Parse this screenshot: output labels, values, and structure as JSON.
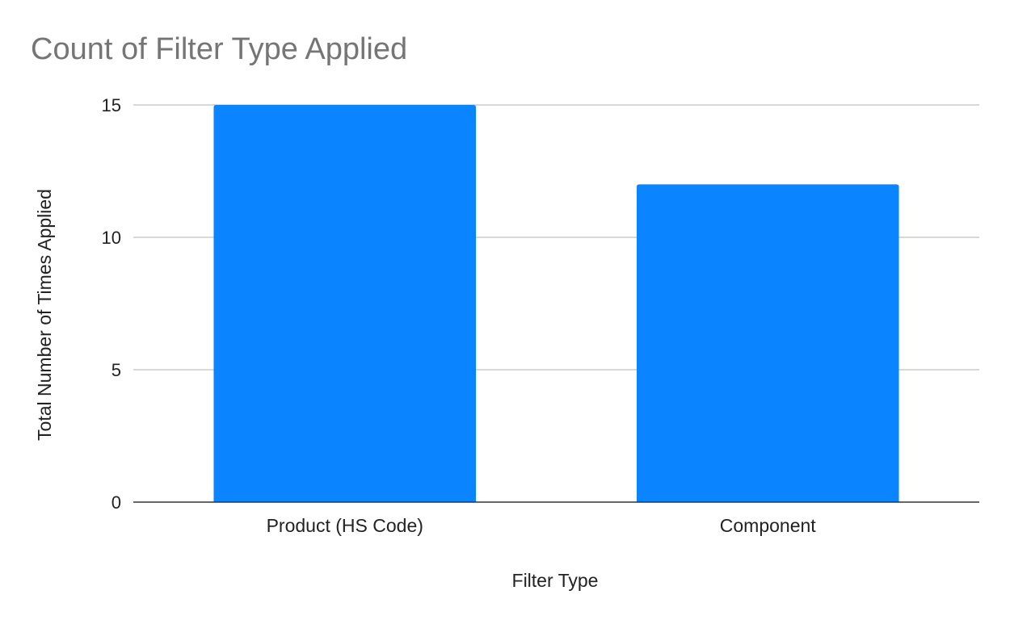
{
  "chart_data": {
    "type": "bar",
    "title": "Count of Filter Type Applied",
    "xlabel": "Filter Type",
    "ylabel": "Total Number of Times Applied",
    "categories": [
      "Product (HS Code)",
      "Component"
    ],
    "values": [
      15,
      12
    ],
    "ylim": [
      0,
      15
    ],
    "yticks": [
      0,
      5,
      10,
      15
    ],
    "grid": true,
    "legend": "none",
    "colors": {
      "bar": "#0a84ff",
      "grid": "#cccccc",
      "axis": "#333333",
      "title": "#757575",
      "text": "#222222"
    }
  }
}
